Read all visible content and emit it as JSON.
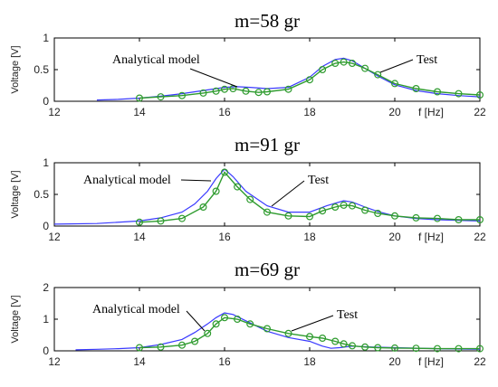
{
  "colors": {
    "model": "#3a3aff",
    "test": "#2e9b2e",
    "axis": "#000000"
  },
  "chart_data": [
    {
      "type": "line",
      "title": "m=58 gr",
      "ylabel": "Voltage [V]",
      "xlabel": "f [Hz]",
      "xlim": [
        12,
        22
      ],
      "ylim": [
        0,
        1
      ],
      "xticks": [
        12,
        14,
        16,
        18,
        20,
        22
      ],
      "yticks": [
        0,
        0.5,
        1
      ],
      "xtick_labels": [
        "12",
        "14",
        "16",
        "18",
        "20",
        "22"
      ],
      "ytick_labels": [
        "0",
        "0.5",
        "1"
      ],
      "annotations": [
        "Analytical model",
        "Test"
      ],
      "series": [
        {
          "name": "Analytical model",
          "x": [
            13,
            13.5,
            14,
            14.5,
            15,
            15.5,
            16,
            16.3,
            16.6,
            17,
            17.5,
            18,
            18.3,
            18.6,
            18.8,
            19,
            19.3,
            19.6,
            20,
            20.5,
            21,
            21.5,
            22
          ],
          "y": [
            0.02,
            0.03,
            0.05,
            0.08,
            0.12,
            0.17,
            0.22,
            0.23,
            0.22,
            0.2,
            0.22,
            0.38,
            0.55,
            0.66,
            0.68,
            0.64,
            0.52,
            0.4,
            0.26,
            0.17,
            0.12,
            0.09,
            0.07
          ]
        },
        {
          "name": "Test",
          "x": [
            14,
            14.5,
            15,
            15.5,
            15.8,
            16,
            16.2,
            16.5,
            16.8,
            17,
            17.5,
            18,
            18.3,
            18.6,
            18.8,
            19,
            19.3,
            19.6,
            20,
            20.5,
            21,
            21.5,
            22
          ],
          "y": [
            0.05,
            0.07,
            0.09,
            0.13,
            0.16,
            0.19,
            0.2,
            0.16,
            0.14,
            0.15,
            0.19,
            0.34,
            0.5,
            0.6,
            0.62,
            0.6,
            0.52,
            0.42,
            0.28,
            0.2,
            0.15,
            0.12,
            0.1
          ]
        }
      ]
    },
    {
      "type": "line",
      "title": "m=91 gr",
      "ylabel": "Voltage [V]",
      "xlabel": "f [Hz]",
      "xlim": [
        12,
        22
      ],
      "ylim": [
        0,
        1
      ],
      "xticks": [
        12,
        14,
        16,
        18,
        20,
        22
      ],
      "yticks": [
        0,
        0.5,
        1
      ],
      "xtick_labels": [
        "12",
        "14",
        "16",
        "18",
        "20",
        "22"
      ],
      "ytick_labels": [
        "0",
        "0.5",
        "1"
      ],
      "annotations": [
        "Analytical model",
        "Test"
      ],
      "series": [
        {
          "name": "Analytical model",
          "x": [
            12,
            13,
            14,
            14.5,
            15,
            15.3,
            15.6,
            15.8,
            16,
            16.2,
            16.5,
            17,
            17.5,
            18,
            18.4,
            18.8,
            19,
            19.3,
            19.6,
            20,
            20.5,
            21,
            22
          ],
          "y": [
            0.03,
            0.04,
            0.08,
            0.13,
            0.22,
            0.35,
            0.55,
            0.75,
            0.9,
            0.78,
            0.55,
            0.32,
            0.22,
            0.22,
            0.32,
            0.4,
            0.38,
            0.3,
            0.23,
            0.16,
            0.12,
            0.1,
            0.08
          ]
        },
        {
          "name": "Test",
          "x": [
            14,
            14.5,
            15,
            15.5,
            15.8,
            16,
            16.3,
            16.6,
            17,
            17.5,
            18,
            18.3,
            18.6,
            18.8,
            19,
            19.3,
            19.6,
            20,
            20.5,
            21,
            21.5,
            22
          ],
          "y": [
            0.06,
            0.08,
            0.12,
            0.3,
            0.55,
            0.85,
            0.62,
            0.42,
            0.22,
            0.16,
            0.15,
            0.24,
            0.3,
            0.33,
            0.32,
            0.25,
            0.2,
            0.16,
            0.13,
            0.12,
            0.1,
            0.1
          ]
        }
      ]
    },
    {
      "type": "line",
      "title": "m=69 gr",
      "ylabel": "Voltage [V]",
      "xlabel": "f [Hz]",
      "xlim": [
        12,
        22
      ],
      "ylim": [
        0,
        2
      ],
      "xticks": [
        12,
        14,
        16,
        18,
        20,
        22
      ],
      "yticks": [
        0,
        1,
        2
      ],
      "xtick_labels": [
        "12",
        "14",
        "16",
        "18",
        "20",
        "22"
      ],
      "ytick_labels": [
        "0",
        "1",
        "2"
      ],
      "annotations": [
        "Analytical model",
        "Test"
      ],
      "series": [
        {
          "name": "Analytical model",
          "x": [
            12.5,
            13,
            13.5,
            14,
            14.5,
            15,
            15.3,
            15.6,
            15.8,
            16,
            16.2,
            16.5,
            17,
            17.5,
            18,
            18.3,
            18.5,
            18.7,
            19,
            19.5,
            20,
            21,
            22
          ],
          "y": [
            0.03,
            0.05,
            0.07,
            0.1,
            0.2,
            0.36,
            0.58,
            0.85,
            1.05,
            1.2,
            1.15,
            0.95,
            0.62,
            0.42,
            0.3,
            0.15,
            0.08,
            0.1,
            0.15,
            0.12,
            0.1,
            0.07,
            0.05
          ]
        },
        {
          "name": "Test",
          "x": [
            14,
            14.5,
            15,
            15.3,
            15.6,
            15.8,
            16,
            16.3,
            16.6,
            17,
            17.5,
            18,
            18.3,
            18.6,
            18.8,
            19,
            19.3,
            19.6,
            20,
            20.5,
            21,
            21.5,
            22
          ],
          "y": [
            0.1,
            0.12,
            0.18,
            0.3,
            0.55,
            0.85,
            1.05,
            1.0,
            0.85,
            0.7,
            0.55,
            0.45,
            0.4,
            0.3,
            0.22,
            0.16,
            0.12,
            0.1,
            0.09,
            0.08,
            0.07,
            0.07,
            0.07
          ]
        }
      ]
    }
  ]
}
